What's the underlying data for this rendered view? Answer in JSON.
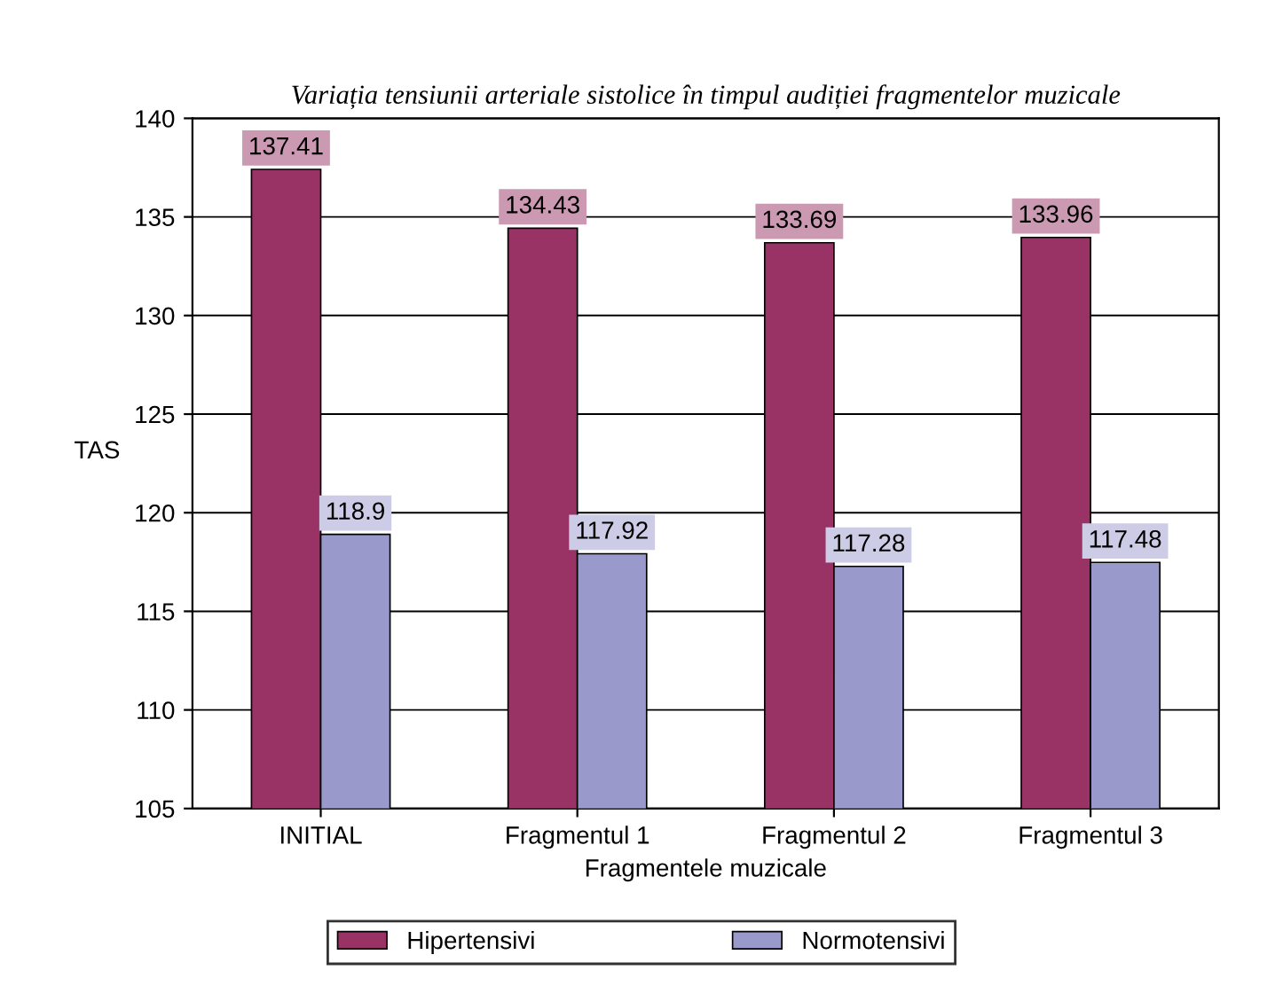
{
  "chart_data": {
    "type": "bar",
    "title": "Variația tensiunii arteriale sistolice în timpul audiției fragmentelor muzicale",
    "xlabel": "Fragmentele muzicale",
    "ylabel": "TAS",
    "categories": [
      "INITIAL",
      "Fragmentul 1",
      "Fragmentul 2",
      "Fragmentul 3"
    ],
    "series": [
      {
        "name": "Hipertensivi",
        "color": "#993366",
        "values": [
          137.41,
          134.43,
          133.69,
          133.96
        ]
      },
      {
        "name": "Normotensivi",
        "color": "#9999cc",
        "values": [
          118.9,
          117.92,
          117.28,
          117.48
        ]
      }
    ],
    "ylim": [
      105,
      140
    ],
    "yticks": [
      105,
      110,
      115,
      120,
      125,
      130,
      135,
      140
    ],
    "grid": "y",
    "legend": "bottom",
    "data_labels": true
  }
}
